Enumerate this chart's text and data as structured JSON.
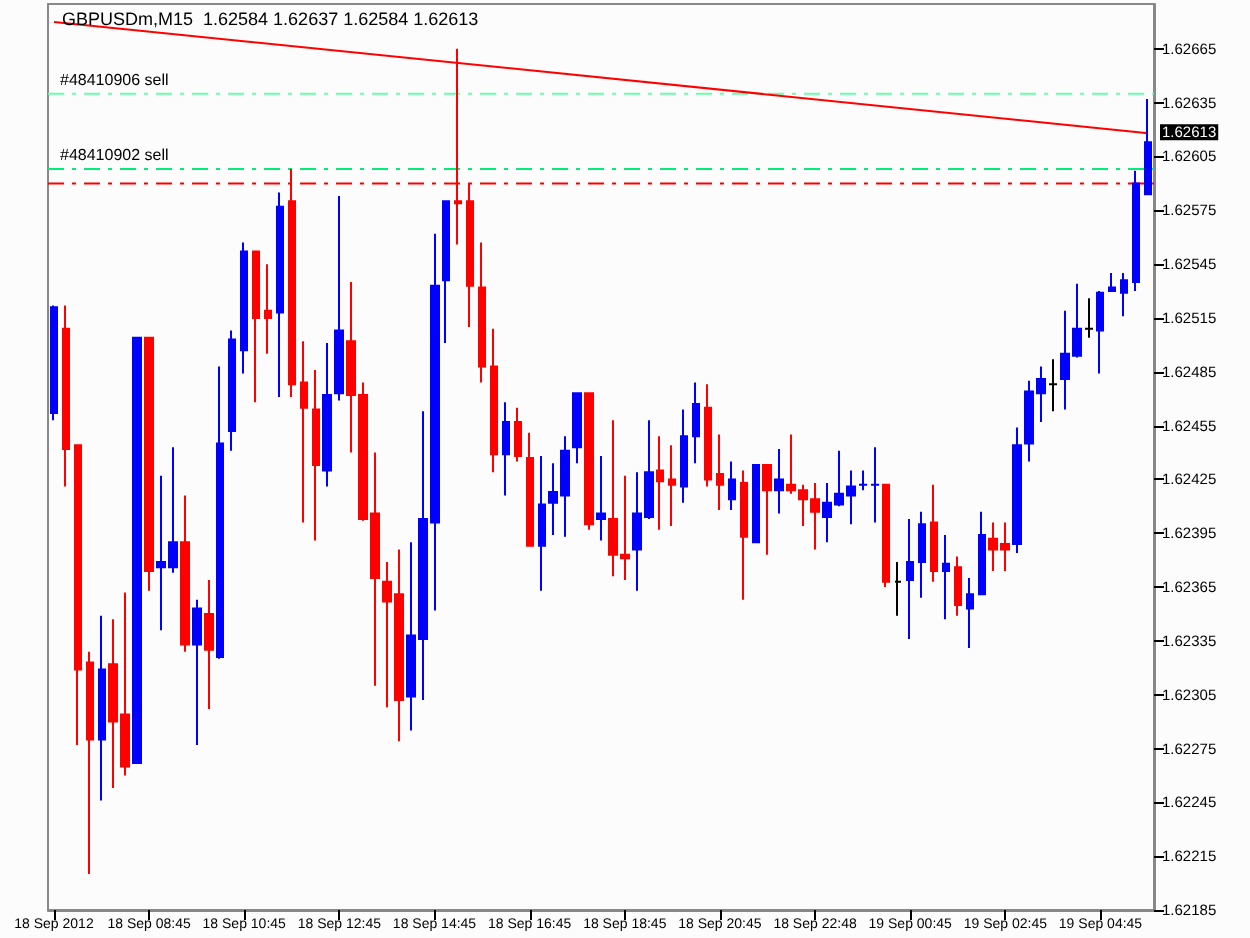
{
  "chart_data": {
    "type": "candlestick",
    "title": "GBPUSDm,M15  1.62584 1.62637 1.62584 1.62613",
    "categories": [
      "18 Sep 2012",
      null,
      null,
      null,
      null,
      null,
      null,
      null,
      "18 Sep 08:45",
      null,
      null,
      null,
      null,
      null,
      null,
      null,
      "18 Sep 10:45",
      null,
      null,
      null,
      null,
      null,
      null,
      null,
      "18 Sep 12:45",
      null,
      null,
      null,
      null,
      null,
      null,
      null,
      "18 Sep 14:45",
      null,
      null,
      null,
      null,
      null,
      null,
      null,
      "18 Sep 16:45",
      null,
      null,
      null,
      null,
      null,
      null,
      null,
      "18 Sep 18:45",
      null,
      null,
      null,
      null,
      null,
      null,
      null,
      "18 Sep 20:45",
      null,
      null,
      null,
      null,
      null,
      null,
      null,
      "18 Sep 22:48",
      null,
      null,
      null,
      null,
      null,
      null,
      null,
      "19 Sep 00:45",
      null,
      null,
      null,
      null,
      null,
      null,
      null,
      "19 Sep 02:45",
      null,
      null,
      null,
      null,
      null,
      null,
      null,
      "19 Sep 04:45",
      null,
      null,
      null,
      null
    ],
    "series": [
      {
        "colors": [
          "#0000ff",
          "#ff0000",
          "#ff0000",
          "#ff0000",
          "#0000ff",
          "#ff0000",
          "#ff0000",
          "#0000ff",
          "#ff0000",
          "#0000ff",
          "#0000ff",
          "#ff0000",
          "#0000ff",
          "#ff0000",
          "#0000ff",
          "#0000ff",
          "#0000ff",
          "#ff0000",
          "#ff0000",
          "#0000ff",
          "#ff0000",
          "#ff0000",
          "#ff0000",
          "#0000ff",
          "#0000ff",
          "#ff0000",
          "#ff0000",
          "#ff0000",
          "#ff0000",
          "#ff0000",
          "#0000ff",
          "#0000ff",
          "#0000ff",
          "#0000ff",
          "#ff0000",
          "#ff0000",
          "#ff0000",
          "#ff0000",
          "#0000ff",
          "#ff0000",
          "#ff0000",
          "#0000ff",
          "#0000ff",
          "#0000ff",
          "#0000ff",
          "#ff0000",
          "#0000ff",
          "#ff0000",
          "#ff0000",
          "#0000ff",
          "#0000ff",
          "#ff0000",
          "#ff0000",
          "#0000ff",
          "#0000ff",
          "#ff0000",
          "#ff0000",
          "#0000ff",
          "#ff0000",
          "#0000ff",
          "#ff0000",
          "#0000ff",
          "#ff0000",
          "#ff0000",
          "#ff0000",
          "#0000ff",
          "#0000ff",
          "#0000ff",
          "#0000ff",
          "#0000ff",
          "#ff0000",
          "#000000",
          "#0000ff",
          "#0000ff",
          "#ff0000",
          "#0000ff",
          "#ff0000",
          "#0000ff",
          "#0000ff",
          "#ff0000",
          "#ff0000",
          "#0000ff",
          "#0000ff",
          "#0000ff",
          "#000000",
          "#0000ff",
          "#0000ff",
          "#000000",
          "#0000ff",
          "#0000ff",
          "#0000ff",
          "#0000ff",
          "#0000ff"
        ],
        "ohlc": [
          [
            1.62462,
            1.62522,
            1.62458,
            1.62521
          ],
          [
            1.62509,
            1.62522,
            1.62421,
            1.62442
          ],
          [
            1.62444,
            1.62444,
            1.62277,
            1.62319
          ],
          [
            1.62323,
            1.62329,
            1.62205,
            1.6228
          ],
          [
            1.6228,
            1.62349,
            1.62246,
            1.62319
          ],
          [
            1.62322,
            1.62347,
            1.62253,
            1.6229
          ],
          [
            1.62294,
            1.62362,
            1.6226,
            1.62265
          ],
          [
            1.62267,
            1.62504,
            1.62267,
            1.62504
          ],
          [
            1.62504,
            1.62504,
            1.62363,
            1.62374
          ],
          [
            1.62376,
            1.62427,
            1.62341,
            1.62379
          ],
          [
            1.62376,
            1.62443,
            1.62373,
            1.6239
          ],
          [
            1.6239,
            1.62416,
            1.62329,
            1.62333
          ],
          [
            1.62333,
            1.62358,
            1.62277,
            1.62353
          ],
          [
            1.6235,
            1.62369,
            1.62297,
            1.6233
          ],
          [
            1.62326,
            1.62488,
            1.62325,
            1.62445
          ],
          [
            1.62452,
            1.62508,
            1.62441,
            1.62503
          ],
          [
            1.62497,
            1.62557,
            1.62484,
            1.62552
          ],
          [
            1.62552,
            1.62552,
            1.62468,
            1.62515
          ],
          [
            1.62519,
            1.62545,
            1.62495,
            1.62515
          ],
          [
            1.62518,
            1.62585,
            1.62471,
            1.62577
          ],
          [
            1.6258,
            1.62598,
            1.62471,
            1.62478
          ],
          [
            1.62479,
            1.62502,
            1.62401,
            1.62465
          ],
          [
            1.62464,
            1.62486,
            1.62391,
            1.62433
          ],
          [
            1.6243,
            1.62501,
            1.62421,
            1.62472
          ],
          [
            1.62473,
            1.62583,
            1.62469,
            1.62508
          ],
          [
            1.62502,
            1.62535,
            1.6244,
            1.62472
          ],
          [
            1.62472,
            1.62479,
            1.62402,
            1.62403
          ],
          [
            1.62406,
            1.6244,
            1.6231,
            1.6237
          ],
          [
            1.62368,
            1.62379,
            1.62298,
            1.62357
          ],
          [
            1.62361,
            1.62386,
            1.62279,
            1.62302
          ],
          [
            1.62304,
            1.6239,
            1.62285,
            1.62338
          ],
          [
            1.62336,
            1.62463,
            1.62302,
            1.62403
          ],
          [
            1.62401,
            1.62562,
            1.62352,
            1.62533
          ],
          [
            1.62536,
            1.6258,
            1.62501,
            1.6258
          ],
          [
            1.6258,
            1.62665,
            1.62556,
            1.62579
          ],
          [
            1.6258,
            1.6259,
            1.6251,
            1.62533
          ],
          [
            1.62532,
            1.62557,
            1.62479,
            1.62488
          ],
          [
            1.62488,
            1.62509,
            1.62429,
            1.62439
          ],
          [
            1.62439,
            1.62468,
            1.62416,
            1.62457
          ],
          [
            1.62457,
            1.62465,
            1.62435,
            1.62438
          ],
          [
            1.62437,
            1.62451,
            1.62388,
            1.62388
          ],
          [
            1.62388,
            1.62438,
            1.62363,
            1.62411
          ],
          [
            1.62412,
            1.62434,
            1.62394,
            1.62418
          ],
          [
            1.62416,
            1.62449,
            1.62393,
            1.62441
          ],
          [
            1.62443,
            1.62473,
            1.62434,
            1.62473
          ],
          [
            1.62473,
            1.62473,
            1.62397,
            1.624
          ],
          [
            1.62403,
            1.62438,
            1.62391,
            1.62406
          ],
          [
            1.62403,
            1.62458,
            1.62371,
            1.62383
          ],
          [
            1.62383,
            1.62427,
            1.62369,
            1.62381
          ],
          [
            1.62386,
            1.62429,
            1.62363,
            1.62406
          ],
          [
            1.62404,
            1.62458,
            1.62403,
            1.62429
          ],
          [
            1.6243,
            1.62449,
            1.62397,
            1.62424
          ],
          [
            1.62425,
            1.62444,
            1.62399,
            1.62422
          ],
          [
            1.62421,
            1.62464,
            1.62412,
            1.62449
          ],
          [
            1.62449,
            1.62479,
            1.62434,
            1.62467
          ],
          [
            1.62465,
            1.62478,
            1.62421,
            1.62425
          ],
          [
            1.62428,
            1.6245,
            1.62408,
            1.62422
          ],
          [
            1.62414,
            1.62435,
            1.62408,
            1.62425
          ],
          [
            1.62423,
            1.6243,
            1.62358,
            1.62393
          ],
          [
            1.6239,
            1.62433,
            1.6239,
            1.62433
          ],
          [
            1.62433,
            1.62433,
            1.62383,
            1.62419
          ],
          [
            1.62419,
            1.62442,
            1.62406,
            1.62425
          ],
          [
            1.62422,
            1.6245,
            1.62417,
            1.62419
          ],
          [
            1.62419,
            1.62422,
            1.62399,
            1.62414
          ],
          [
            1.62414,
            1.62423,
            1.62386,
            1.62407
          ],
          [
            1.62404,
            1.62423,
            1.6239,
            1.62412
          ],
          [
            1.62411,
            1.62441,
            1.6241,
            1.62417
          ],
          [
            1.62416,
            1.6243,
            1.624,
            1.62421
          ],
          [
            1.62422,
            1.6243,
            1.62419,
            1.62422
          ],
          [
            1.62422,
            1.62443,
            1.62401,
            1.62422
          ],
          [
            1.62422,
            1.62422,
            1.62365,
            1.62368
          ],
          [
            1.62368,
            1.62379,
            1.62349,
            1.62368
          ],
          [
            1.62369,
            1.62403,
            1.62336,
            1.62379
          ],
          [
            1.62379,
            1.62407,
            1.62359,
            1.624
          ],
          [
            1.62401,
            1.62422,
            1.62368,
            1.62374
          ],
          [
            1.62374,
            1.62394,
            1.62347,
            1.62378
          ],
          [
            1.62376,
            1.62382,
            1.62349,
            1.62355
          ],
          [
            1.62353,
            1.6237,
            1.62331,
            1.62361
          ],
          [
            1.62361,
            1.62407,
            1.62361,
            1.62394
          ],
          [
            1.62392,
            1.62401,
            1.62374,
            1.62386
          ],
          [
            1.62389,
            1.62401,
            1.62374,
            1.62386
          ],
          [
            1.62389,
            1.62454,
            1.62384,
            1.62444
          ],
          [
            1.62445,
            1.6248,
            1.62435,
            1.62474
          ],
          [
            1.62473,
            1.62488,
            1.62457,
            1.62481
          ],
          [
            1.62478,
            1.62492,
            1.62463,
            1.62478
          ],
          [
            1.62481,
            1.62519,
            1.62464,
            1.62495
          ],
          [
            1.62494,
            1.62534,
            1.62493,
            1.62509
          ],
          [
            1.62509,
            1.62526,
            1.62504,
            1.62509
          ],
          [
            1.62508,
            1.6253,
            1.62484,
            1.62529
          ],
          [
            1.6253,
            1.6254,
            1.6253,
            1.62532
          ],
          [
            1.62529,
            1.6254,
            1.62516,
            1.62536
          ],
          [
            1.62535,
            1.62597,
            1.6253,
            1.6259
          ],
          [
            1.62584,
            1.62637,
            1.62584,
            1.62613
          ]
        ]
      },
      {
        "type": "line",
        "color": "#ff0000",
        "marker": "none",
        "line_style": "solid",
        "values": [
          1.6268,
          null,
          null,
          null,
          null,
          null,
          null,
          null,
          null,
          null,
          null,
          null,
          null,
          null,
          null,
          null,
          null,
          null,
          null,
          null,
          null,
          null,
          null,
          null,
          null,
          null,
          null,
          null,
          null,
          null,
          null,
          null,
          null,
          null,
          null,
          null,
          null,
          null,
          null,
          null,
          null,
          null,
          null,
          null,
          null,
          null,
          null,
          null,
          null,
          null,
          null,
          null,
          null,
          null,
          null,
          null,
          null,
          null,
          null,
          null,
          null,
          null,
          null,
          null,
          null,
          null,
          null,
          null,
          null,
          null,
          null,
          null,
          null,
          null,
          null,
          null,
          null,
          null,
          null,
          null,
          null,
          null,
          null,
          null,
          null,
          null,
          null,
          null,
          null,
          null,
          null,
          null,
          1.62618
        ]
      }
    ],
    "ylim": [
      1.62185,
      1.6269
    ],
    "yticks": [
      1.62185,
      1.62215,
      1.62245,
      1.62275,
      1.62305,
      1.62335,
      1.62365,
      1.62395,
      1.62425,
      1.62455,
      1.62485,
      1.62515,
      1.62545,
      1.62575,
      1.62605,
      1.62635,
      1.62665
    ],
    "ref_lines": [
      {
        "axis": "y",
        "value": 1.6264,
        "label": "#48410906 sell",
        "color": "#66ffaa",
        "line_style": "dashed"
      },
      {
        "axis": "y",
        "value": 1.62598,
        "label": "#48410902 sell",
        "color": "#00ee77",
        "line_style": "dashed"
      },
      {
        "axis": "y",
        "value": 1.6259,
        "color": "#ff0000",
        "line_style": "dashed"
      }
    ],
    "annotations": [
      "1.62613"
    ],
    "grid": false
  }
}
